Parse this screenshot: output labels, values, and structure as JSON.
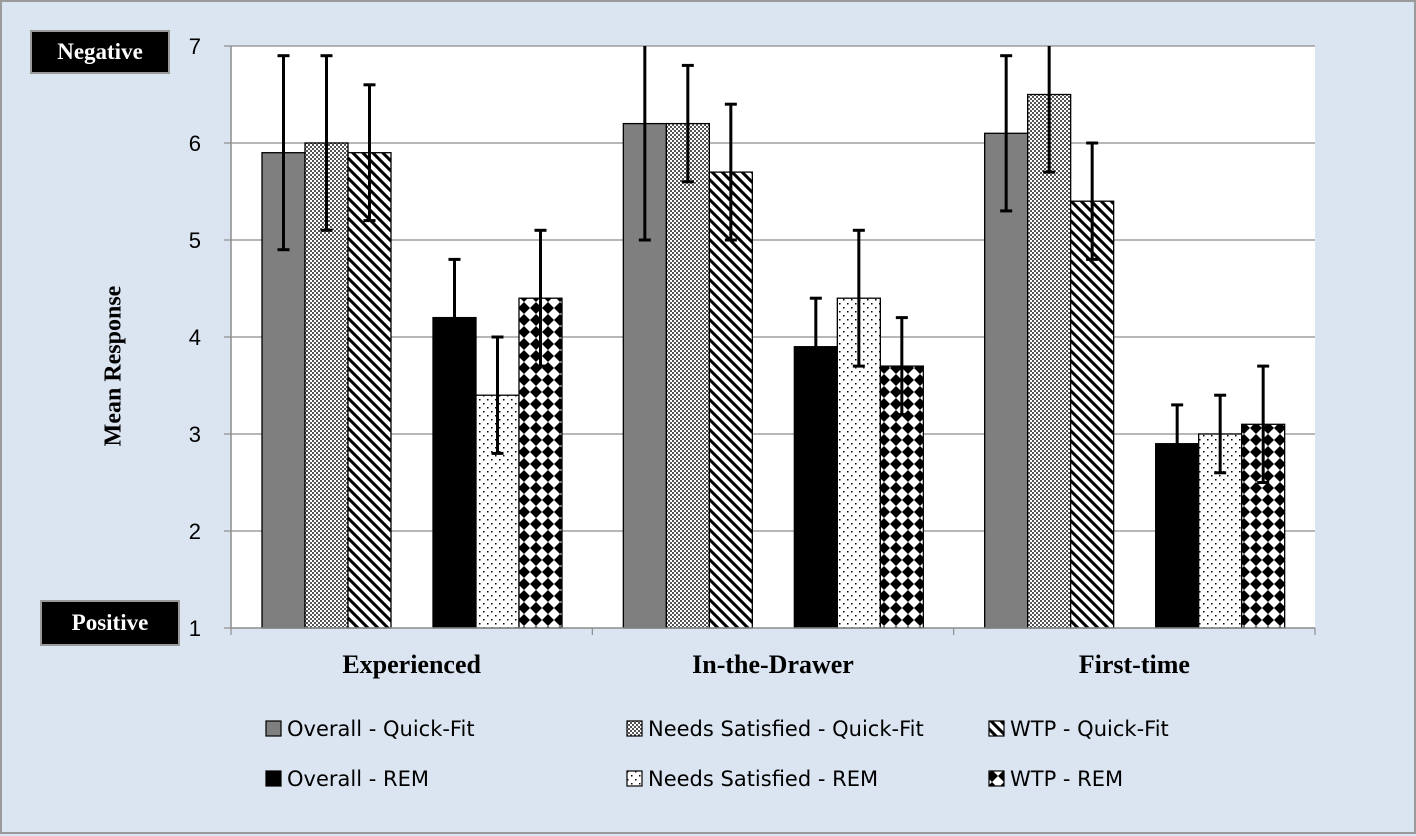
{
  "labels": {
    "negative": "Negative",
    "positive": "Positive"
  },
  "chart_data": {
    "type": "bar",
    "title": "",
    "xlabel": "",
    "ylabel": "Mean Response",
    "ylim": [
      1,
      7
    ],
    "yticks": [
      1,
      2,
      3,
      4,
      5,
      6,
      7
    ],
    "grid": true,
    "legend_position": "bottom",
    "categories": [
      "Experienced",
      "In-the-Drawer",
      "First-time"
    ],
    "series": [
      {
        "name": "Overall - Quick-Fit",
        "values": [
          5.9,
          6.2,
          6.1
        ],
        "error": [
          [
            4.9,
            6.9
          ],
          [
            5.0,
            7.2
          ],
          [
            5.3,
            6.9
          ]
        ],
        "pattern": "solid-gray"
      },
      {
        "name": "Needs Satisfied - Quick-Fit",
        "values": [
          6.0,
          6.2,
          6.5
        ],
        "error": [
          [
            5.1,
            6.9
          ],
          [
            5.6,
            6.8
          ],
          [
            5.7,
            7.3
          ]
        ],
        "pattern": "fine-dots"
      },
      {
        "name": "WTP - Quick-Fit",
        "values": [
          5.9,
          5.7,
          5.4
        ],
        "error": [
          [
            5.2,
            6.6
          ],
          [
            5.0,
            6.4
          ],
          [
            4.8,
            6.0
          ]
        ],
        "pattern": "diagonal-stripes"
      },
      {
        "name": "Overall - REM",
        "values": [
          4.2,
          3.9,
          2.9
        ],
        "error": [
          [
            3.6,
            4.8
          ],
          [
            3.4,
            4.4
          ],
          [
            2.5,
            3.3
          ]
        ],
        "pattern": "solid-black"
      },
      {
        "name": "Needs Satisfied - REM",
        "values": [
          3.4,
          4.4,
          3.0
        ],
        "error": [
          [
            2.8,
            4.0
          ],
          [
            3.7,
            5.1
          ],
          [
            2.6,
            3.4
          ]
        ],
        "pattern": "sparse-dots"
      },
      {
        "name": "WTP - REM",
        "values": [
          4.4,
          3.7,
          3.1
        ],
        "error": [
          [
            3.7,
            5.1
          ],
          [
            3.2,
            4.2
          ],
          [
            2.5,
            3.7
          ]
        ],
        "pattern": "diamond-checker"
      }
    ],
    "colors": {
      "background": "#dbe5f1",
      "plot_area": "#ffffff",
      "quick_fit_overall": "#7f7f7f",
      "rem_overall": "#000000"
    }
  }
}
